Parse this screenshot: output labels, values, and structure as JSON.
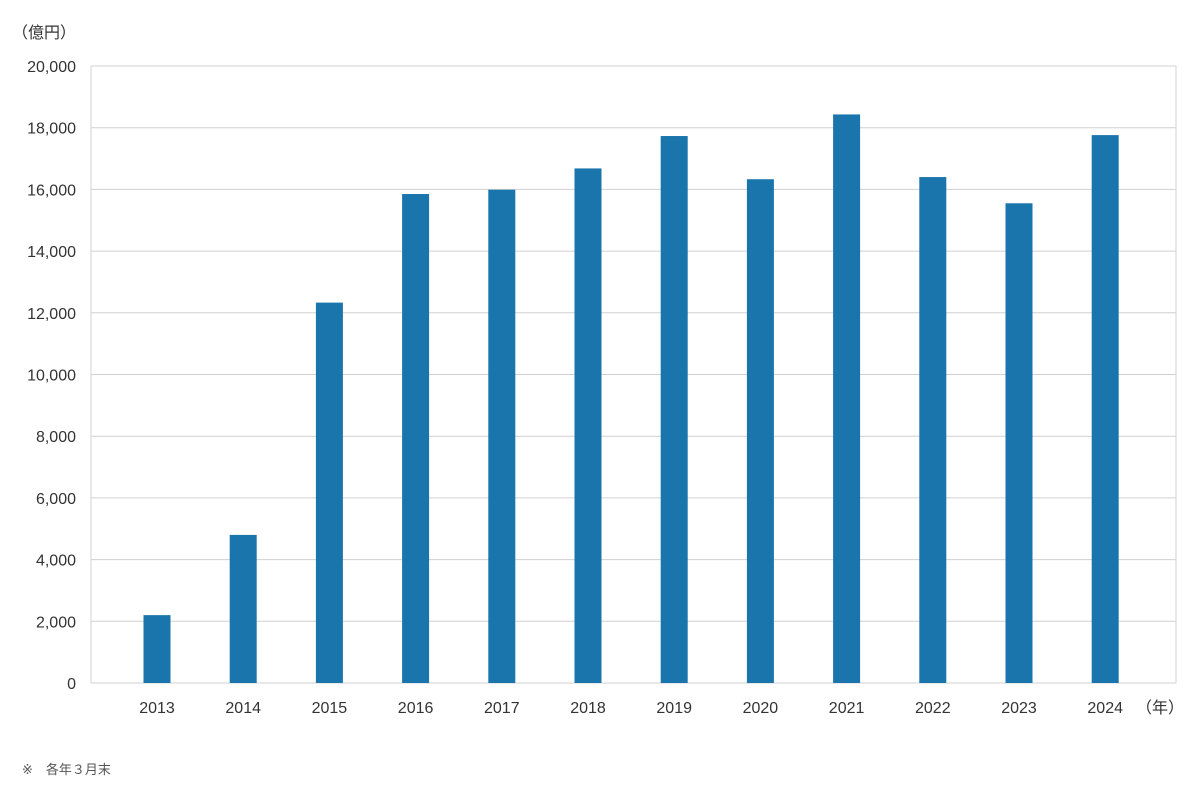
{
  "chart_data": {
    "type": "bar",
    "ylabel": "（億円）",
    "xlabel": "（年）",
    "categories": [
      "2013",
      "2014",
      "2015",
      "2016",
      "2017",
      "2018",
      "2019",
      "2020",
      "2021",
      "2022",
      "2023",
      "2024"
    ],
    "values": [
      2200,
      4800,
      12330,
      15850,
      15990,
      16680,
      17730,
      16330,
      18430,
      16400,
      15550,
      17760
    ],
    "ylim": [
      0,
      20000
    ],
    "yticks": [
      0,
      2000,
      4000,
      6000,
      8000,
      10000,
      12000,
      14000,
      16000,
      18000,
      20000
    ],
    "ytick_labels": [
      "0",
      "2,000",
      "4,000",
      "6,000",
      "8,000",
      "10,000",
      "12,000",
      "14,000",
      "16,000",
      "18,000",
      "20,000"
    ],
    "grid": true,
    "bar_color": "#1a75ad",
    "grid_color": "#d0d0d0"
  },
  "footnote": "※　各年３月末"
}
